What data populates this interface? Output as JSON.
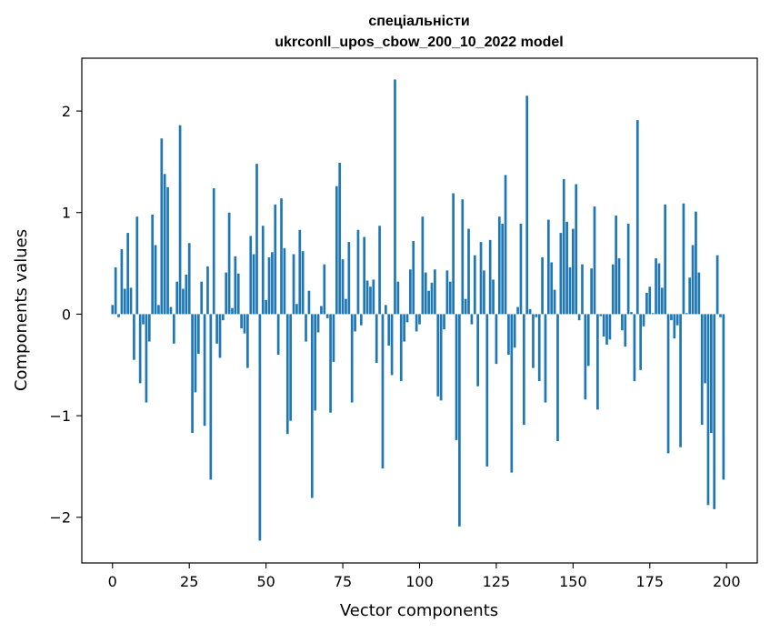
{
  "chart_data": {
    "type": "bar",
    "title_line1": "спеціальністи",
    "title_line2": "ukrconll_upos_cbow_200_10_2022 model",
    "xlabel": "Vector components",
    "ylabel": "Components values",
    "xlim": [
      -10,
      210
    ],
    "ylim": [
      -2.45,
      2.52
    ],
    "xticks": [
      0,
      25,
      50,
      75,
      100,
      125,
      150,
      175,
      200
    ],
    "yticks": [
      2,
      1,
      0,
      -1,
      -2
    ],
    "ytick_labels": [
      "2",
      "1",
      "0",
      "−1",
      "−2"
    ],
    "bar_color": "#1f77b4",
    "grid": false,
    "values": [
      0.09,
      0.46,
      -0.03,
      0.64,
      0.25,
      0.8,
      0.26,
      -0.45,
      0.96,
      -0.68,
      -0.1,
      -0.87,
      -0.27,
      0.98,
      0.68,
      0.09,
      1.73,
      1.38,
      1.25,
      0.07,
      -0.29,
      0.32,
      1.86,
      0.25,
      0.39,
      0.7,
      -1.17,
      -0.77,
      -0.39,
      0.32,
      -1.1,
      0.47,
      -1.63,
      1.24,
      -0.29,
      -0.43,
      -0.06,
      0.41,
      1.0,
      0.06,
      0.57,
      0.4,
      -0.14,
      -0.19,
      -0.53,
      0.77,
      0.59,
      1.48,
      -2.23,
      0.87,
      0.14,
      0.56,
      0.61,
      1.08,
      -0.4,
      1.14,
      0.65,
      -1.18,
      -1.05,
      0.59,
      0.1,
      0.83,
      0.62,
      -0.27,
      0.23,
      -1.81,
      -0.95,
      -0.18,
      0.08,
      0.49,
      -0.04,
      -0.97,
      -0.47,
      1.26,
      1.49,
      0.54,
      0.15,
      0.71,
      -0.87,
      -0.17,
      0.83,
      -0.11,
      0.76,
      0.33,
      0.27,
      0.34,
      -0.48,
      0.87,
      -1.52,
      0.09,
      -0.31,
      -0.6,
      2.31,
      0.32,
      -0.66,
      -0.27,
      -0.08,
      0.44,
      0.72,
      -0.17,
      -0.1,
      0.96,
      0.41,
      0.23,
      0.31,
      0.44,
      -0.81,
      -0.85,
      -0.15,
      0.43,
      0.32,
      1.19,
      -1.24,
      -2.09,
      1.13,
      0.15,
      0.84,
      -0.1,
      0.58,
      -0.71,
      0.71,
      0.43,
      -1.5,
      0.73,
      0.34,
      -0.49,
      0.96,
      0.89,
      1.37,
      -0.4,
      -1.56,
      -0.33,
      0.07,
      0.89,
      -1.09,
      2.15,
      0.05,
      -0.53,
      -0.03,
      -0.66,
      0.56,
      -0.87,
      0.93,
      0.51,
      0.24,
      -1.25,
      0.8,
      1.33,
      0.91,
      0.46,
      0.84,
      1.28,
      -0.06,
      0.49,
      -0.84,
      -0.51,
      0.45,
      1.06,
      -0.94,
      -0.02,
      -0.22,
      -0.3,
      -0.25,
      0.49,
      0.97,
      0.55,
      -0.16,
      -0.32,
      0.89,
      0.02,
      -0.66,
      1.91,
      -0.55,
      -0.12,
      0.21,
      0.27,
      0.01,
      0.55,
      0.5,
      0.26,
      1.08,
      -1.37,
      -0.06,
      -0.24,
      -0.11,
      -1.31,
      1.09,
      0.01,
      0.36,
      0.68,
      1.01,
      0.41,
      -1.09,
      -0.68,
      -1.88,
      -1.17,
      -1.92,
      0.58,
      -0.03,
      -1.63
    ]
  }
}
